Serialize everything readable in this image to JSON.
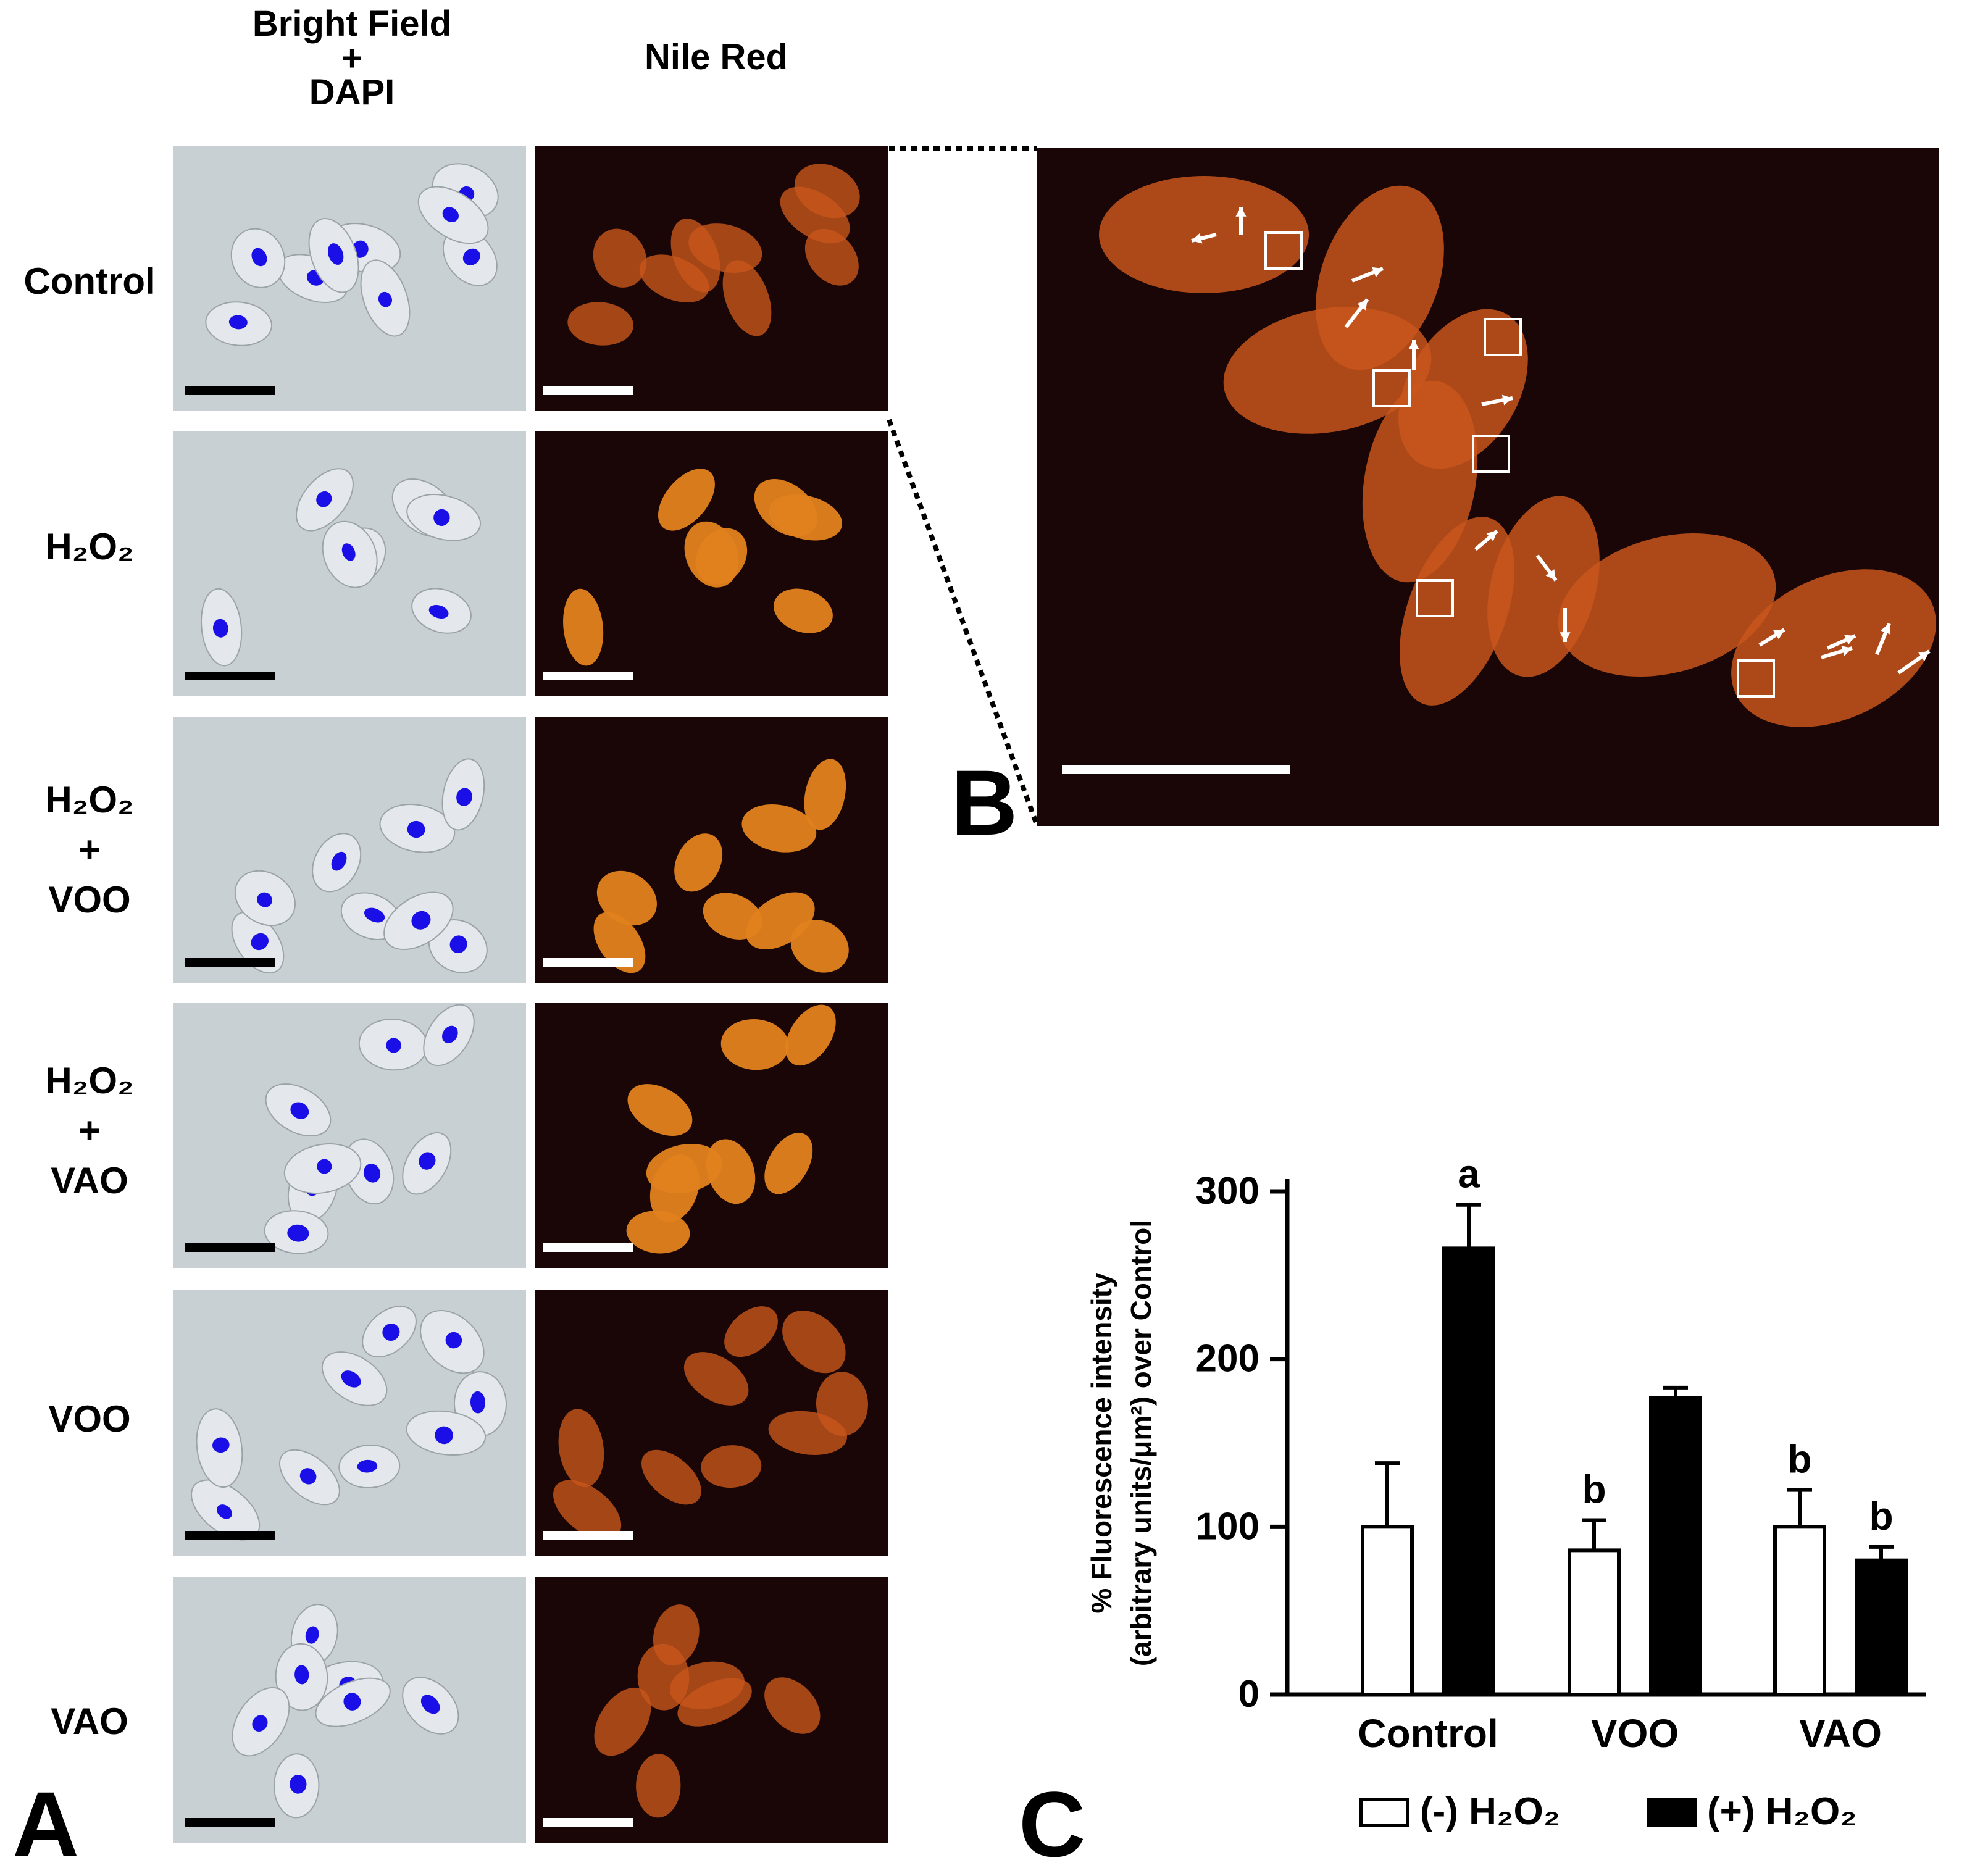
{
  "figure": {
    "columns": [
      {
        "heading_lines": [
          "Bright Field",
          "+",
          "DAPI"
        ]
      },
      {
        "heading_lines": [
          "Nile Red"
        ]
      }
    ],
    "rows": [
      {
        "label_lines": [
          "Control"
        ]
      },
      {
        "label_lines": [
          "H₂O₂"
        ]
      },
      {
        "label_lines": [
          "H₂O₂",
          "+",
          "VOO"
        ]
      },
      {
        "label_lines": [
          "H₂O₂",
          "+",
          "VAO"
        ]
      },
      {
        "label_lines": [
          "VOO"
        ]
      },
      {
        "label_lines": [
          "VAO"
        ]
      }
    ],
    "panel_letters": {
      "a": "A",
      "b": "B",
      "c": "C"
    }
  },
  "colors": {
    "brightfield_bg": "#c9d0d4",
    "cell_fill": "#e4e8ec",
    "dapi_blue": "#1a0fe6",
    "fluor_bg": "#1a0606",
    "nile_red_cell": "#c8561c",
    "nile_red_bright": "#e2821e",
    "scalebar_dark": "#000000",
    "scalebar_light": "#ffffff"
  },
  "chart_data": {
    "type": "bar",
    "categories": [
      "Control",
      "VOO",
      "VAO"
    ],
    "series": [
      {
        "name": "(-) H₂O₂",
        "values": [
          100,
          86,
          100
        ],
        "errors": [
          38,
          18,
          22
        ],
        "fill": "#ffffff",
        "letters": [
          "",
          "b",
          "b"
        ]
      },
      {
        "name": "(+) H₂O₂",
        "values": [
          266,
          177,
          80
        ],
        "errors": [
          26,
          6,
          8
        ],
        "fill": "#000000",
        "letters": [
          "a",
          "",
          "b"
        ]
      }
    ],
    "ylabel_lines": [
      "% Fluorescence intensity",
      "(arbitrary units/μm²) over Control"
    ],
    "ylim": [
      0,
      300
    ],
    "yticks": [
      0,
      100,
      200,
      300
    ],
    "legend_position": "bottom"
  }
}
